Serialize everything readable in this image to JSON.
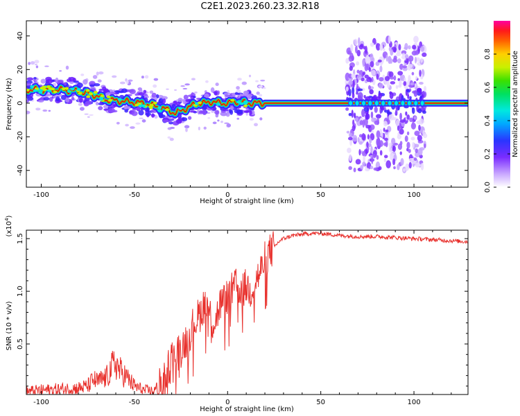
{
  "title": "C2E1.2023.260.23.32.R18",
  "colors": {
    "snr_line": "#e8302c",
    "ridge_core": "#cc1111",
    "ridge_mid": "#00cc44",
    "ridge_low": "#00c8ff",
    "scatter": "#7a2cff"
  },
  "chart_data": [
    {
      "type": "heatmap",
      "title": "C2E1.2023.260.23.32.R18",
      "xlabel": "Height of straight line (km)",
      "ylabel": "Frequency (Hz)",
      "xlim": [
        -108,
        129
      ],
      "ylim": [
        -50,
        49
      ],
      "xticks": [
        "-100",
        "-50",
        "0",
        "50",
        "100"
      ],
      "xtick_values": [
        -100,
        -50,
        0,
        50,
        100
      ],
      "yticks": [
        "-40",
        "-20",
        "0",
        "20",
        "40"
      ],
      "ytick_values": [
        -40,
        -20,
        0,
        20,
        40
      ],
      "colorbar": {
        "label": "Normalized spectral amplitude",
        "range": [
          0,
          1
        ],
        "ticks": [
          "0.0",
          "0.2",
          "0.4",
          "0.6",
          "0.8"
        ],
        "tick_values": [
          0.0,
          0.2,
          0.4,
          0.6,
          0.8
        ],
        "colormap": "rainbow (white-purple-blue-cyan-green-yellow-red-magenta)"
      },
      "ridge": {
        "x": [
          -108,
          -100,
          -90,
          -80,
          -72,
          -65,
          -55,
          -45,
          -38,
          -32,
          -28,
          -24,
          -20,
          -16,
          -12,
          -8,
          -4,
          0,
          5,
          10,
          20,
          65,
          129
        ],
        "y": [
          8,
          8,
          8,
          7,
          5,
          2,
          1,
          0,
          -2,
          -4,
          -6,
          -4,
          -2,
          0,
          0,
          1,
          0,
          0,
          1,
          0,
          0,
          0,
          0
        ]
      },
      "scatter_region": {
        "x": [
          64,
          106
        ],
        "y": [
          -40,
          38
        ]
      },
      "grid": false
    },
    {
      "type": "line",
      "xlabel": "Height of straight line (km)",
      "ylabel": "SNR (10 * v/v)",
      "y_multiplier": "(x10^4)",
      "xlim": [
        -108,
        129
      ],
      "ylim": [
        0.02,
        1.58
      ],
      "xticks": [
        "-100",
        "-50",
        "0",
        "50",
        "100"
      ],
      "xtick_values": [
        -100,
        -50,
        0,
        50,
        100
      ],
      "yticks": [
        "0.5",
        "1.0",
        "1.5"
      ],
      "ytick_values": [
        0.5,
        1.0,
        1.5
      ],
      "grid": false,
      "series": [
        {
          "x": [
            -108,
            -100,
            -90,
            -80,
            -75,
            -72,
            -70,
            -65,
            -62,
            -60,
            -58,
            -55,
            -50,
            -45,
            -40,
            -36,
            -33,
            -30,
            -28,
            -25,
            -22,
            -20,
            -18,
            -15,
            -12,
            -10,
            -8,
            -6,
            -4,
            -2,
            0,
            3,
            5,
            8,
            10,
            12,
            15,
            18,
            20,
            22,
            25,
            28,
            30,
            35,
            40,
            45,
            50,
            55,
            60,
            70,
            80,
            90,
            100,
            110,
            120,
            129
          ],
          "y": [
            0.05,
            0.06,
            0.07,
            0.08,
            0.1,
            0.16,
            0.14,
            0.18,
            0.28,
            0.32,
            0.25,
            0.2,
            0.1,
            0.06,
            0.05,
            0.1,
            0.22,
            0.38,
            0.4,
            0.45,
            0.55,
            0.62,
            0.7,
            0.78,
            0.9,
            0.82,
            0.7,
            0.75,
            0.88,
            0.9,
            0.95,
            1.02,
            1.05,
            1.0,
            1.05,
            1.0,
            1.1,
            1.2,
            1.3,
            1.36,
            1.42,
            1.48,
            1.5,
            1.53,
            1.54,
            1.55,
            1.55,
            1.54,
            1.53,
            1.52,
            1.52,
            1.51,
            1.5,
            1.49,
            1.48,
            1.47
          ]
        }
      ]
    }
  ]
}
